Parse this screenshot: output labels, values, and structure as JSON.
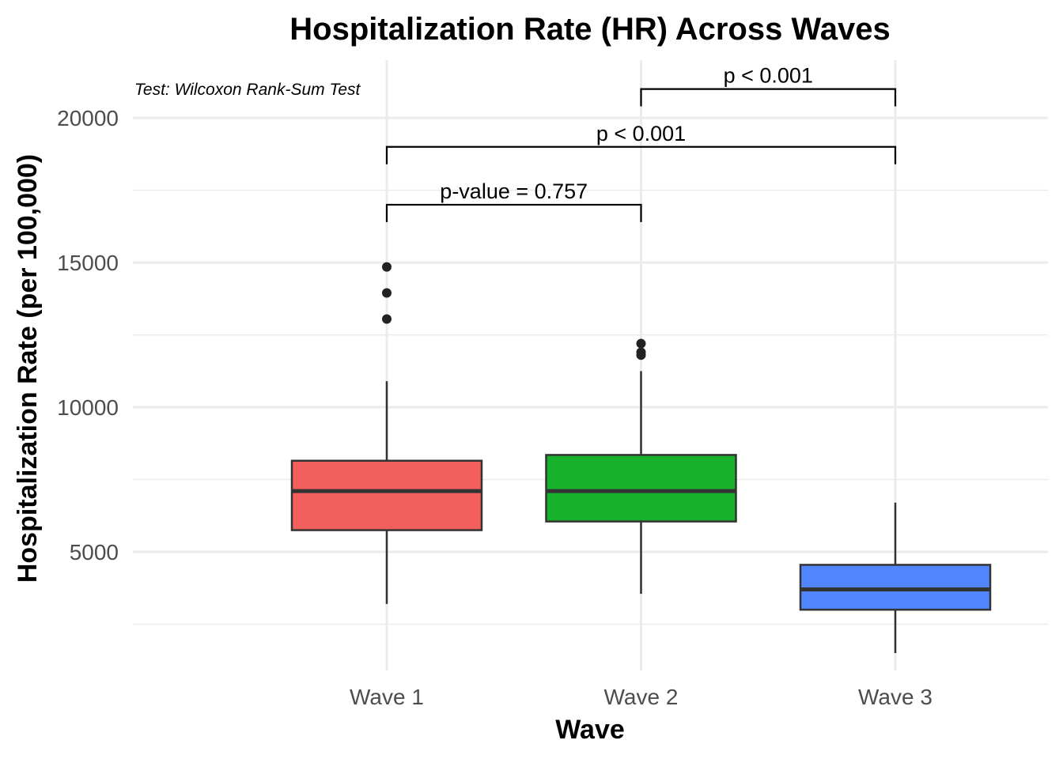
{
  "chart_data": {
    "type": "box",
    "title": "Hospitalization Rate (HR) Across Waves",
    "xlabel": "Wave",
    "ylabel": "Hospitalization Rate (per 100,000)",
    "ylim": [
      900,
      22000
    ],
    "yticks": [
      5000,
      10000,
      15000,
      20000
    ],
    "grid": true,
    "annotation": "Test: Wilcoxon Rank-Sum Test",
    "categories": [
      "Wave 1",
      "Wave 2",
      "Wave 3"
    ],
    "colors": [
      "#F25F5C",
      "#17B12B",
      "#5186FF"
    ],
    "boxes": [
      {
        "category": "Wave 1",
        "whisker_low": 3200,
        "q1": 5750,
        "median": 7100,
        "q3": 8150,
        "whisker_high": 10900,
        "outliers": [
          13050,
          13950,
          14850
        ]
      },
      {
        "category": "Wave 2",
        "whisker_low": 3550,
        "q1": 6050,
        "median": 7100,
        "q3": 8350,
        "whisker_high": 11250,
        "outliers": [
          11800,
          11900,
          12200
        ]
      },
      {
        "category": "Wave 3",
        "whisker_low": 1500,
        "q1": 3000,
        "median": 3700,
        "q3": 4550,
        "whisker_high": 6700,
        "outliers": []
      }
    ],
    "comparisons": [
      {
        "from": "Wave 1",
        "to": "Wave 2",
        "label": "p-value = 0.757",
        "y": 17000,
        "tip": 16400
      },
      {
        "from": "Wave 1",
        "to": "Wave 3",
        "label": "p < 0.001",
        "y": 19000,
        "tip": 18400
      },
      {
        "from": "Wave 2",
        "to": "Wave 3",
        "label": "p < 0.001",
        "y": 21000,
        "tip": 20400
      }
    ]
  }
}
